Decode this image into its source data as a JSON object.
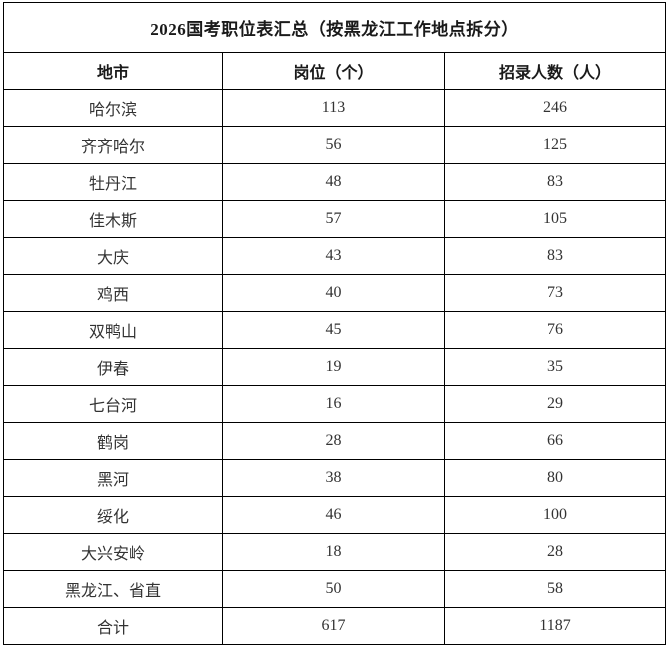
{
  "page": {
    "background_color": "#ffffff",
    "border_color": "#000000",
    "text_color": "#333333",
    "heading_color": "#1a1a1a"
  },
  "table": {
    "title": "2026国考职位表汇总（按黑龙江工作地点拆分）",
    "columns": [
      {
        "label": "地市"
      },
      {
        "label": "岗位（个）"
      },
      {
        "label": "招录人数（人）"
      }
    ],
    "rows": [
      {
        "city": "哈尔滨",
        "positions": "113",
        "recruits": "246"
      },
      {
        "city": "齐齐哈尔",
        "positions": "56",
        "recruits": "125"
      },
      {
        "city": "牡丹江",
        "positions": "48",
        "recruits": "83"
      },
      {
        "city": "佳木斯",
        "positions": "57",
        "recruits": "105"
      },
      {
        "city": "大庆",
        "positions": "43",
        "recruits": "83"
      },
      {
        "city": "鸡西",
        "positions": "40",
        "recruits": "73"
      },
      {
        "city": "双鸭山",
        "positions": "45",
        "recruits": "76"
      },
      {
        "city": "伊春",
        "positions": "19",
        "recruits": "35"
      },
      {
        "city": "七台河",
        "positions": "16",
        "recruits": "29"
      },
      {
        "city": "鹤岗",
        "positions": "28",
        "recruits": "66"
      },
      {
        "city": "黑河",
        "positions": "38",
        "recruits": "80"
      },
      {
        "city": "绥化",
        "positions": "46",
        "recruits": "100"
      },
      {
        "city": "大兴安岭",
        "positions": "18",
        "recruits": "28"
      },
      {
        "city": "黑龙江、省直",
        "positions": "50",
        "recruits": "58"
      },
      {
        "city": "合计",
        "positions": "617",
        "recruits": "1187"
      }
    ]
  }
}
